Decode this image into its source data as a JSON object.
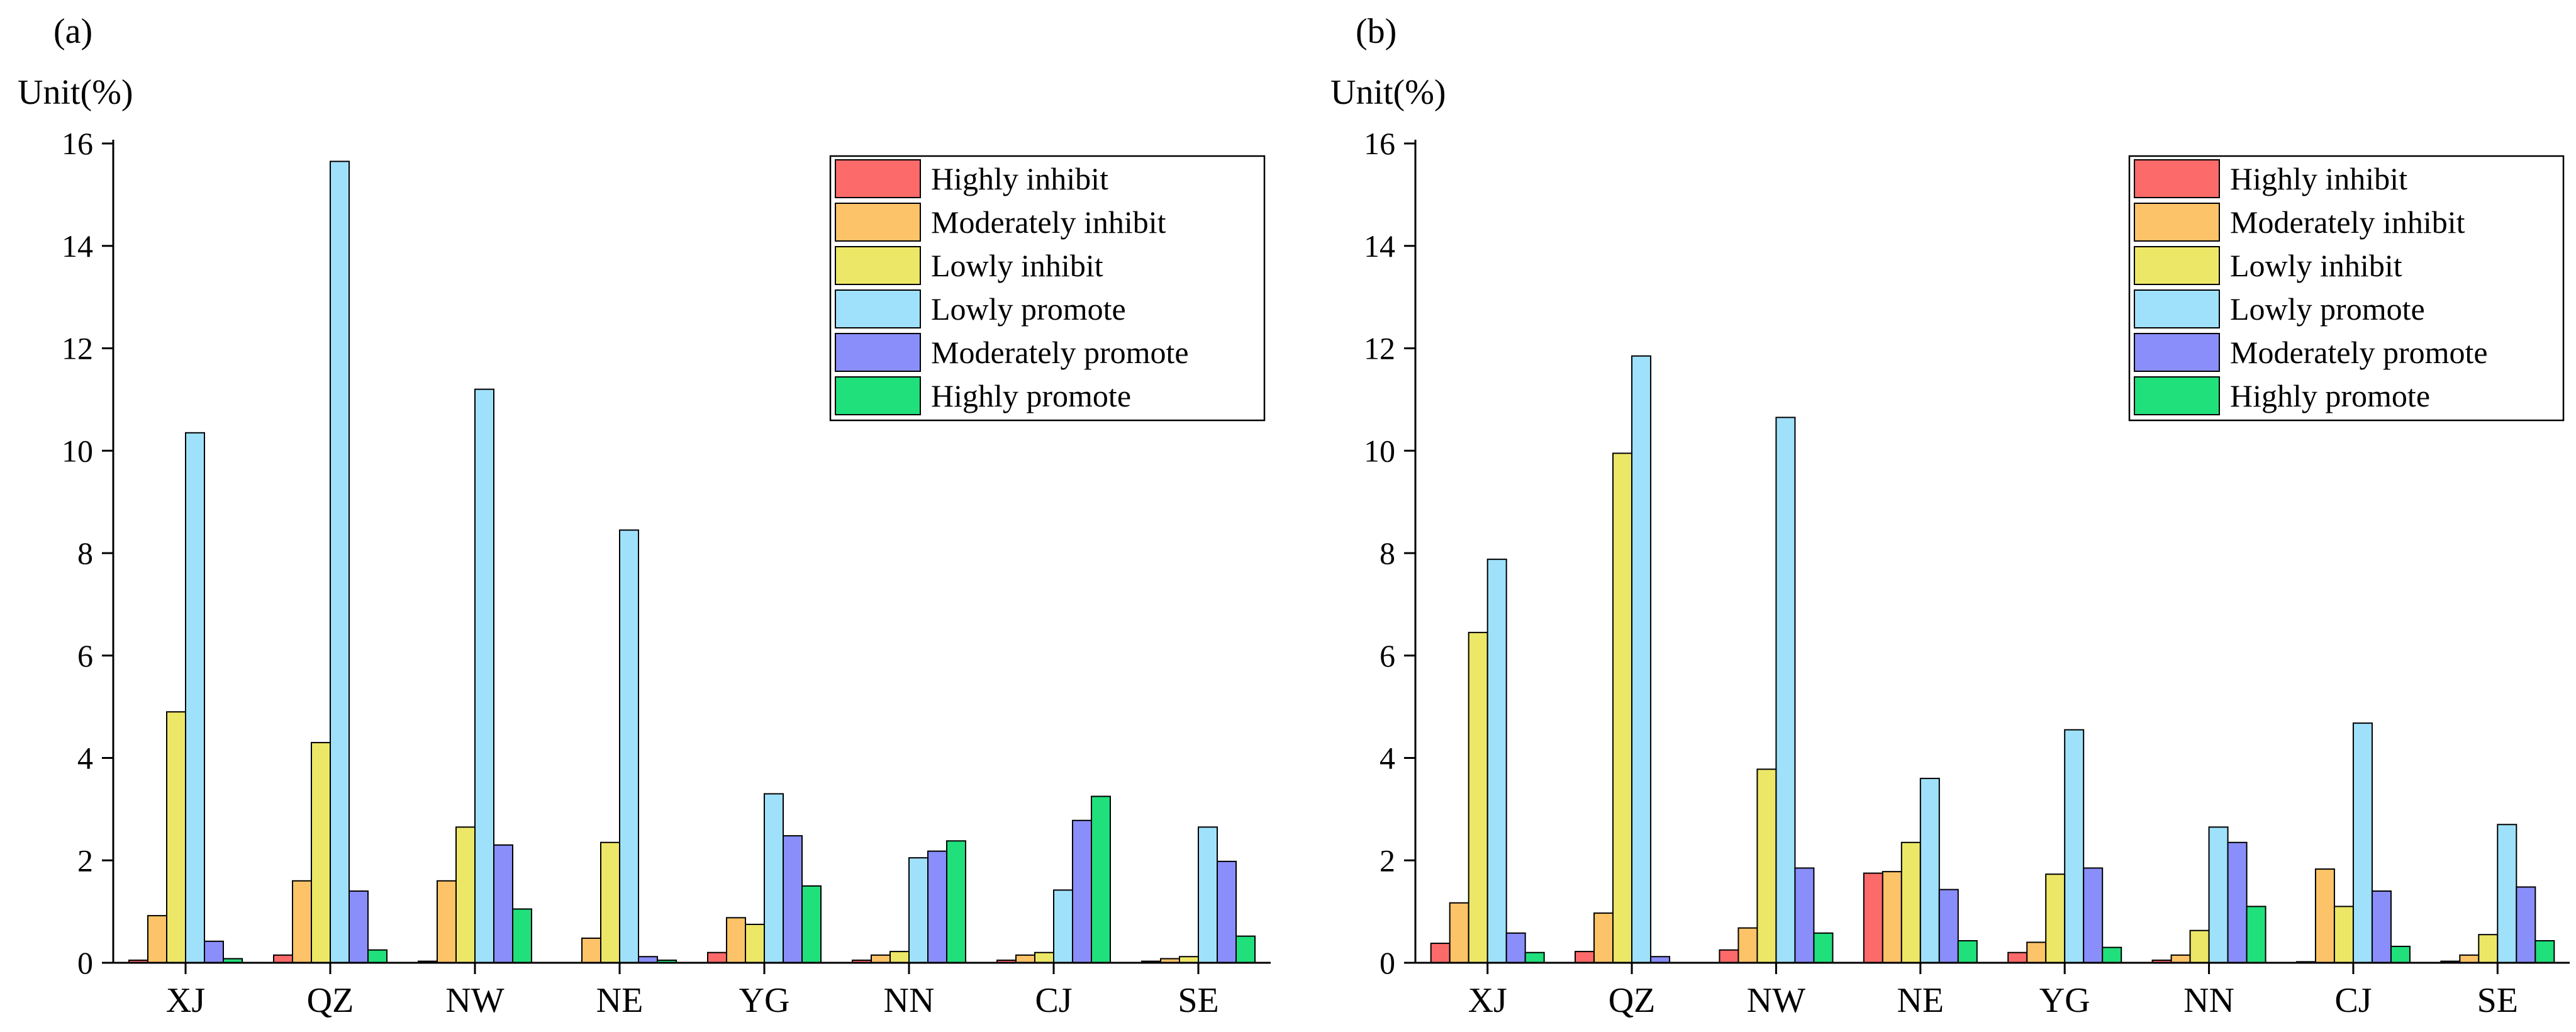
{
  "chart_data": [
    {
      "type": "bar",
      "panel_label": "(a)",
      "unit_label": "Unit(%)",
      "categories": [
        "XJ",
        "QZ",
        "NW",
        "NE",
        "YG",
        "NN",
        "CJ",
        "SE"
      ],
      "ylim": [
        0,
        16
      ],
      "yticks": [
        "0",
        "2",
        "4",
        "6",
        "8",
        "10",
        "12",
        "14",
        "16"
      ],
      "legend_position": "top-right",
      "series": [
        {
          "name": "Highly inhibit",
          "color": "#fd6a6a",
          "values": [
            0.05,
            0.15,
            0.03,
            0.0,
            0.2,
            0.05,
            0.05,
            0.03
          ]
        },
        {
          "name": "Moderately inhibit",
          "color": "#fdc368",
          "values": [
            0.92,
            1.6,
            1.6,
            0.48,
            0.88,
            0.15,
            0.15,
            0.08
          ]
        },
        {
          "name": "Lowly inhibit",
          "color": "#ede768",
          "values": [
            4.9,
            4.3,
            2.65,
            2.35,
            0.75,
            0.22,
            0.2,
            0.12
          ]
        },
        {
          "name": "Lowly promote",
          "color": "#9fe1fb",
          "values": [
            10.35,
            15.65,
            11.2,
            8.45,
            3.3,
            2.05,
            1.42,
            2.65
          ]
        },
        {
          "name": "Moderately promote",
          "color": "#8a8efb",
          "values": [
            0.42,
            1.4,
            2.3,
            0.12,
            2.48,
            2.18,
            2.78,
            1.98
          ]
        },
        {
          "name": "Highly promote",
          "color": "#1fe07b",
          "values": [
            0.08,
            0.25,
            1.05,
            0.05,
            1.5,
            2.38,
            3.25,
            0.52
          ]
        }
      ]
    },
    {
      "type": "bar",
      "panel_label": "(b)",
      "unit_label": "Unit(%)",
      "categories": [
        "XJ",
        "QZ",
        "NW",
        "NE",
        "YG",
        "NN",
        "CJ",
        "SE"
      ],
      "ylim": [
        0,
        16
      ],
      "yticks": [
        "0",
        "2",
        "4",
        "6",
        "8",
        "10",
        "12",
        "14",
        "16"
      ],
      "legend_position": "top-right",
      "series": [
        {
          "name": "Highly inhibit",
          "color": "#fd6a6a",
          "values": [
            0.38,
            0.22,
            0.25,
            1.75,
            0.2,
            0.05,
            0.02,
            0.03
          ]
        },
        {
          "name": "Moderately inhibit",
          "color": "#fdc368",
          "values": [
            1.17,
            0.97,
            0.68,
            1.78,
            0.4,
            0.15,
            1.83,
            0.15
          ]
        },
        {
          "name": "Lowly inhibit",
          "color": "#ede768",
          "values": [
            6.45,
            9.95,
            3.78,
            2.35,
            1.73,
            0.63,
            1.1,
            0.55
          ]
        },
        {
          "name": "Lowly promote",
          "color": "#9fe1fb",
          "values": [
            7.88,
            11.85,
            10.65,
            3.6,
            4.55,
            2.65,
            4.68,
            2.7
          ]
        },
        {
          "name": "Moderately promote",
          "color": "#8a8efb",
          "values": [
            0.58,
            0.12,
            1.85,
            1.43,
            1.85,
            2.35,
            1.4,
            1.48
          ]
        },
        {
          "name": "Highly promote",
          "color": "#1fe07b",
          "values": [
            0.2,
            0.0,
            0.58,
            0.43,
            0.3,
            1.1,
            0.32,
            0.43
          ]
        }
      ]
    }
  ]
}
